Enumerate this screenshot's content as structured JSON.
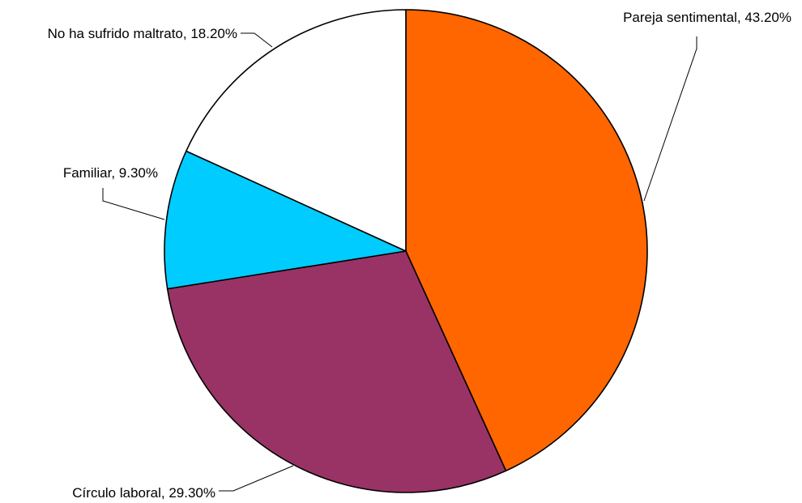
{
  "chart_data": {
    "type": "pie",
    "start": "12 o'clock",
    "direction": "clockwise",
    "slices": [
      {
        "label": "Pareja sentimental, 43.20%",
        "value": 43.2,
        "color": "#FF6600"
      },
      {
        "label": "Círculo laboral, 29.30%",
        "value": 29.3,
        "color": "#993366"
      },
      {
        "label": "Familiar, 9.30%",
        "value": 9.3,
        "color": "#00CCFF"
      },
      {
        "label": "No ha sufrido maltrato, 18.20%",
        "value": 18.2,
        "color": "#FFFFFF"
      }
    ],
    "legend": "none"
  }
}
